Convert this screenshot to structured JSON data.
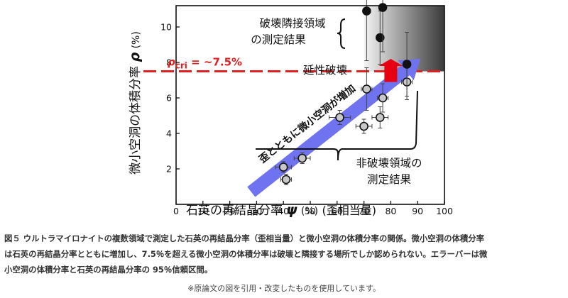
{
  "chart_data": {
    "type": "scatter",
    "xlabel": {
      "main": "石英の再結晶分率",
      "symbol": "ψ",
      "unit": "(%)",
      "suffix": "(歪相当量)"
    },
    "ylabel": {
      "main": "微小空洞の体積分率",
      "symbol": "ρ",
      "unit": "(%)"
    },
    "xlim": [
      0,
      100
    ],
    "ylim": [
      0,
      11.2
    ],
    "xticks": [
      0,
      10,
      20,
      30,
      40,
      50,
      60,
      70,
      80,
      90,
      100
    ],
    "yticks": [
      2,
      4,
      6,
      8,
      10
    ],
    "grid": false,
    "threshold": {
      "y": 7.5,
      "color": "#e02020",
      "label_symbol": "ρ",
      "label_sub": "cri",
      "label_rest": " = ~7.5%"
    },
    "points": [
      {
        "x": 40,
        "y": 2.1,
        "xerr": 3,
        "yerr": 0.3,
        "fill": "#c8c8c8"
      },
      {
        "x": 41,
        "y": 1.4,
        "xerr": 2,
        "yerr": 0.3,
        "fill": "#c8c8c8"
      },
      {
        "x": 47,
        "y": 2.6,
        "xerr": 3,
        "yerr": 0.3,
        "fill": "#c8c8c8"
      },
      {
        "x": 61,
        "y": 4.9,
        "xerr": 4,
        "yerr": 0.4,
        "fill": "#c8c8c8"
      },
      {
        "x": 70,
        "y": 4.4,
        "xerr": 3,
        "yerr": 0.4,
        "fill": "#c8c8c8"
      },
      {
        "x": 71,
        "y": 6.5,
        "xerr": 2,
        "yerr": 1.2,
        "fill": "#c8c8c8"
      },
      {
        "x": 76,
        "y": 4.9,
        "xerr": 3,
        "yerr": 0.6,
        "fill": "#c8c8c8"
      },
      {
        "x": 77,
        "y": 6.0,
        "xerr": 2,
        "yerr": 0.8,
        "fill": "#c8c8c8"
      },
      {
        "x": 86,
        "y": 6.9,
        "xerr": 2,
        "yerr": 1.0,
        "fill": "#c8c8c8"
      },
      {
        "x": 71,
        "y": 10.9,
        "xerr": 1,
        "yerr": 2.8,
        "fill": "#111111"
      },
      {
        "x": 76,
        "y": 9.4,
        "xerr": 1,
        "yerr": 1.5,
        "fill": "#111111"
      },
      {
        "x": 77,
        "y": 11.1,
        "xerr": 1,
        "yerr": 2.5,
        "fill": "#111111"
      },
      {
        "x": 86,
        "y": 7.9,
        "xerr": 1,
        "yerr": 1.8,
        "fill": "#111111"
      }
    ],
    "trend_arrow": {
      "from": [
        28,
        0.7
      ],
      "to": [
        91,
        8.2
      ],
      "color": "#6f73f0",
      "label": "歪とともに微小空洞が増加"
    },
    "fracture_region": {
      "xmin": 70,
      "xmax": 100,
      "ymin": 7.5,
      "ymax": 11.2
    },
    "annotations": {
      "fracture_adjacent": [
        "破壊隣接領域",
        "の測定結果"
      ],
      "ductile_fracture": "延性破壊",
      "non_fracture": [
        "非破壊領域の",
        "測定結果"
      ]
    },
    "colors": {
      "threshold": "#e02020",
      "arrow": "#6f73f0",
      "up_arrow": "#e60012"
    }
  },
  "caption": {
    "lines": [
      "図５ ウルトラマイロナイトの複数領域で測定した石英の再結晶分率（歪相当量）と微小空洞の体積分率の関係。微小空洞の体積分率",
      "は石英の再結晶分率とともに増加し、7.5％を超える微小空洞の体積分率は破壊と隣接する場所でしか認められない。エラーバーは微",
      "小空洞の体積分率と石英の再結晶分率の 95％信頼区間。"
    ]
  },
  "note": "※原論文の図を引用・改変したものを使用しています。"
}
